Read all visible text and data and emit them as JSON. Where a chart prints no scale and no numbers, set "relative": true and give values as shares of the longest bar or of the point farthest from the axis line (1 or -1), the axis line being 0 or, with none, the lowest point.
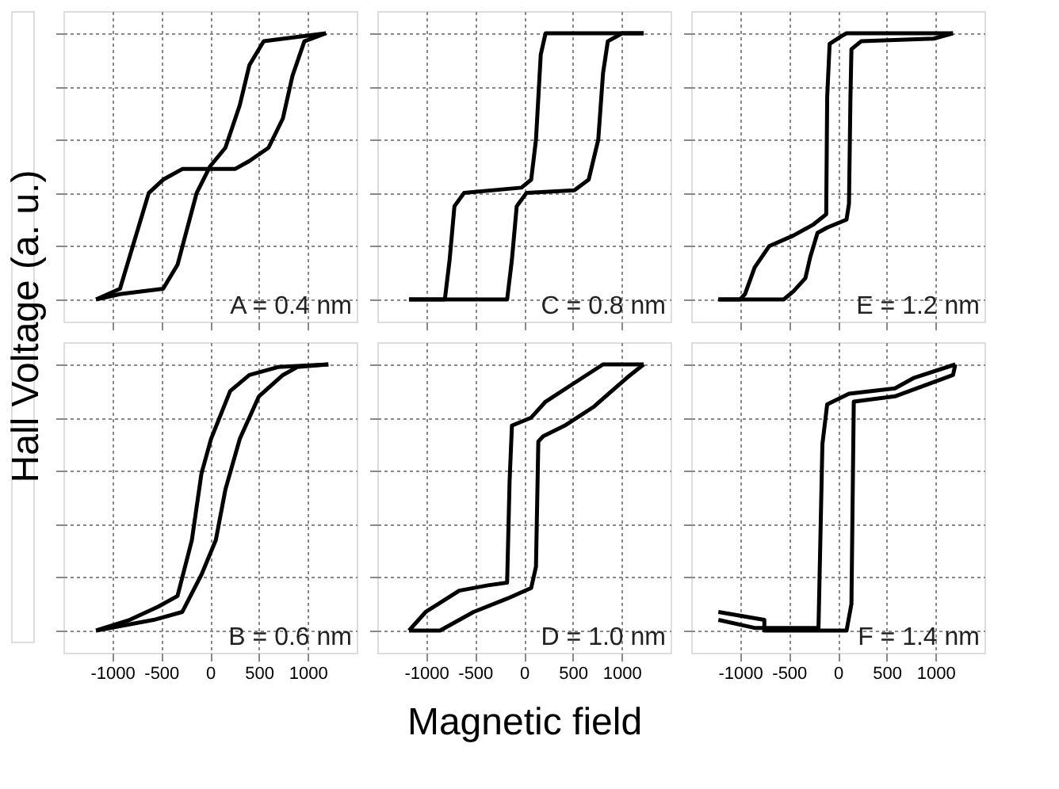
{
  "chart_data": [
    {
      "type": "line",
      "relative": true,
      "xlim": [
        -1500,
        1500
      ],
      "xticks": [
        -1000,
        -500,
        0,
        500,
        1000
      ],
      "grid": true,
      "tick_labels": false,
      "ylabel": "Hall Voltage (a. u.)",
      "annotations": [
        "A = 0.4 nm"
      ],
      "series": [
        {
          "color": "#000000",
          "x": [
            -1166,
            -921,
            -480,
            -333,
            -137,
            0,
            157,
            304,
            402,
            549,
            1186
          ],
          "values": [
            0,
            0.02,
            0.04,
            0.13,
            0.4,
            0.5,
            0.57,
            0.73,
            0.88,
            0.97,
            1.0
          ]
        },
        {
          "color": "#000000",
          "x": [
            1186,
            965,
            843,
            745,
            598,
            402,
            255,
            0,
            -284,
            -480,
            -627,
            -774,
            -921,
            -1166
          ],
          "values": [
            1.0,
            0.97,
            0.84,
            0.68,
            0.57,
            0.52,
            0.49,
            0.49,
            0.49,
            0.45,
            0.4,
            0.22,
            0.04,
            0
          ]
        }
      ]
    },
    {
      "type": "line",
      "relative": true,
      "xlim": [
        -1500,
        1500
      ],
      "xticks": [
        -1000,
        -500,
        0,
        500,
        1000
      ],
      "grid": true,
      "tick_labels": false,
      "annotations": [
        "C = 0.8 nm"
      ],
      "series": [
        {
          "color": "#000000",
          "x": [
            -1176,
            -809,
            -172,
            -123,
            -74,
            25,
            515,
            662,
            760,
            809,
            858,
            1005,
            1225
          ],
          "values": [
            0,
            0,
            0,
            0.15,
            0.35,
            0.4,
            0.41,
            0.45,
            0.6,
            0.85,
            0.97,
            1.0,
            1.0
          ]
        },
        {
          "color": "#000000",
          "x": [
            1225,
            221,
            172,
            123,
            74,
            -25,
            -613,
            -711,
            -760,
            -809,
            -1176
          ],
          "values": [
            1.0,
            1.0,
            0.92,
            0.6,
            0.45,
            0.42,
            0.4,
            0.35,
            0.15,
            0,
            0
          ]
        }
      ]
    },
    {
      "type": "line",
      "relative": true,
      "xlim": [
        -1500,
        1500
      ],
      "xticks": [
        -1000,
        -500,
        0,
        500,
        1000
      ],
      "grid": true,
      "tick_labels": false,
      "annotations": [
        "E = 1.2 nm"
      ],
      "series": [
        {
          "color": "#000000",
          "x": [
            -1222,
            -554,
            -455,
            -332,
            -282,
            -208,
            -109,
            89,
            114,
            129,
            139,
            238,
            980,
            1178
          ],
          "values": [
            0,
            0,
            0.03,
            0.08,
            0.16,
            0.25,
            0.27,
            0.3,
            0.36,
            0.76,
            0.94,
            0.97,
            0.98,
            1.0
          ]
        },
        {
          "color": "#000000",
          "x": [
            1178,
            89,
            40,
            -84,
            -109,
            -119,
            -257,
            -455,
            -703,
            -851,
            -950,
            -1000,
            -1222
          ],
          "values": [
            1.0,
            1.0,
            0.99,
            0.96,
            0.76,
            0.32,
            0.28,
            0.24,
            0.2,
            0.12,
            0.02,
            0,
            0
          ]
        }
      ]
    },
    {
      "type": "line",
      "relative": true,
      "xlim": [
        -1500,
        1500
      ],
      "xticks": [
        -1000,
        -500,
        0,
        500,
        1000
      ],
      "grid": true,
      "tick_labels": "x",
      "annotations": [
        "B = 0.6 nm"
      ],
      "series": [
        {
          "color": "#000000",
          "x": [
            -1166,
            -578,
            -284,
            -88,
            59,
            157,
            304,
            500,
            745,
            892,
            1210
          ],
          "values": [
            0,
            0.04,
            0.07,
            0.21,
            0.34,
            0.53,
            0.72,
            0.88,
            0.96,
            0.99,
            1.0
          ]
        },
        {
          "color": "#000000",
          "x": [
            1210,
            696,
            402,
            206,
            10,
            -88,
            -186,
            -333,
            -529,
            -823,
            -1166
          ],
          "values": [
            1.0,
            0.99,
            0.96,
            0.9,
            0.72,
            0.59,
            0.34,
            0.13,
            0.09,
            0.04,
            0
          ]
        }
      ]
    },
    {
      "type": "line",
      "relative": true,
      "xlim": [
        -1500,
        1500
      ],
      "xticks": [
        -1000,
        -500,
        0,
        500,
        1000
      ],
      "grid": true,
      "tick_labels": "x",
      "xlabel": "Magnetic field",
      "annotations": [
        "D = 1.0 nm"
      ],
      "series": [
        {
          "color": "#000000",
          "x": [
            -1176,
            -858,
            -515,
            -172,
            74,
            123,
            147,
            196,
            417,
            711,
            1054,
            1225
          ],
          "values": [
            0,
            0,
            0.07,
            0.12,
            0.16,
            0.24,
            0.71,
            0.73,
            0.77,
            0.84,
            0.95,
            1.0
          ]
        },
        {
          "color": "#000000",
          "x": [
            1225,
            809,
            515,
            221,
            74,
            -123,
            -147,
            -172,
            -368,
            -662,
            -1005,
            -1176
          ],
          "values": [
            1.0,
            1.0,
            0.93,
            0.86,
            0.8,
            0.77,
            0.56,
            0.18,
            0.17,
            0.15,
            0.07,
            0
          ]
        }
      ]
    },
    {
      "type": "line",
      "relative": true,
      "xlim": [
        -1500,
        1500
      ],
      "xticks": [
        -1000,
        -500,
        0,
        500,
        1000
      ],
      "grid": true,
      "tick_labels": "x",
      "annotations": [
        "F = 1.4 nm"
      ],
      "series": [
        {
          "color": "#000000",
          "x": [
            -1222,
            -752,
            -752,
            -208,
            89,
            139,
            163,
            584,
            881,
            1178,
            1202
          ],
          "values": [
            0.07,
            0.04,
            0,
            0,
            0,
            0.1,
            0.86,
            0.88,
            0.92,
            0.96,
            1.0
          ]
        },
        {
          "color": "#000000",
          "x": [
            1202,
            782,
            584,
            114,
            -109,
            -158,
            -198,
            -851,
            -1222
          ],
          "values": [
            1.0,
            0.95,
            0.91,
            0.89,
            0.85,
            0.7,
            0.01,
            0.01,
            0.04
          ]
        }
      ]
    }
  ]
}
